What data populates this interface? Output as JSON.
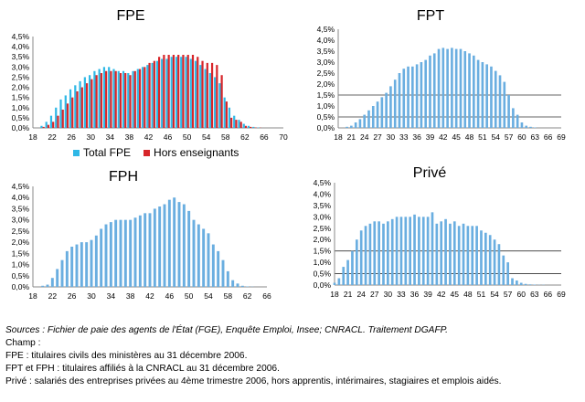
{
  "notes": {
    "sources": "Sources : Fichier de paie des agents de l'État (FGE), Enquête Emploi, Insee; CNRACL. Traitement DGAFP.",
    "champ": "Champ :",
    "fpe": "FPE : titulaires civils des ministères au 31 décembre 2006.",
    "fpt": "FPT et FPH : titulaires affiliés à la CNRACL au 31 décembre 2006.",
    "prive": "Privé : salariés des entreprises privées au 4ème trimestre 2006, hors apprentis, intérimaires, stagiaires et emplois aidés."
  },
  "colors": {
    "total_fpe": "#2fb8e6",
    "hors_enseignants": "#d7262a",
    "bar_blue": "#6aaee0",
    "axis": "#888888",
    "grid": "#333333"
  },
  "chart_data": [
    {
      "id": "fpe",
      "type": "bar",
      "title": "FPE",
      "ylim": [
        0,
        4.5
      ],
      "yticks": [
        "0,0%",
        "0,5%",
        "1,0%",
        "1,5%",
        "2,0%",
        "2,5%",
        "3,0%",
        "3,5%",
        "4,0%",
        "4,5%"
      ],
      "xticks": [
        "18",
        "22",
        "26",
        "30",
        "34",
        "38",
        "42",
        "46",
        "50",
        "54",
        "58",
        "62",
        "66",
        "70"
      ],
      "xrange": [
        18,
        70
      ],
      "legend": [
        "Total FPE",
        "Hors enseignants"
      ],
      "series": [
        {
          "name": "Total FPE",
          "x": [
            20,
            21,
            22,
            23,
            24,
            25,
            26,
            27,
            28,
            29,
            30,
            31,
            32,
            33,
            34,
            35,
            36,
            37,
            38,
            39,
            40,
            41,
            42,
            43,
            44,
            45,
            46,
            47,
            48,
            49,
            50,
            51,
            52,
            53,
            54,
            55,
            56,
            57,
            58,
            59,
            60,
            61,
            62,
            63,
            64,
            65
          ],
          "values": [
            0.1,
            0.3,
            0.6,
            1.0,
            1.4,
            1.6,
            1.9,
            2.1,
            2.3,
            2.5,
            2.6,
            2.8,
            2.9,
            3.0,
            3.0,
            2.9,
            2.8,
            2.8,
            2.7,
            2.8,
            2.9,
            3.0,
            3.1,
            3.2,
            3.3,
            3.4,
            3.4,
            3.5,
            3.5,
            3.5,
            3.5,
            3.4,
            3.3,
            3.1,
            2.9,
            2.7,
            2.5,
            2.2,
            1.5,
            1.0,
            0.6,
            0.4,
            0.2,
            0.1,
            0.05,
            0.02
          ]
        },
        {
          "name": "Hors enseignants",
          "x": [
            20,
            21,
            22,
            23,
            24,
            25,
            26,
            27,
            28,
            29,
            30,
            31,
            32,
            33,
            34,
            35,
            36,
            37,
            38,
            39,
            40,
            41,
            42,
            43,
            44,
            45,
            46,
            47,
            48,
            49,
            50,
            51,
            52,
            53,
            54,
            55,
            56,
            57,
            58,
            59,
            60,
            61,
            62,
            63,
            64,
            65
          ],
          "values": [
            0.05,
            0.15,
            0.3,
            0.6,
            0.9,
            1.2,
            1.5,
            1.8,
            2.0,
            2.2,
            2.4,
            2.6,
            2.7,
            2.8,
            2.8,
            2.8,
            2.7,
            2.7,
            2.6,
            2.8,
            2.9,
            3.0,
            3.2,
            3.3,
            3.5,
            3.6,
            3.6,
            3.6,
            3.6,
            3.6,
            3.6,
            3.6,
            3.5,
            3.3,
            3.2,
            3.2,
            3.1,
            2.6,
            1.3,
            0.5,
            0.4,
            0.3,
            0.1,
            0.05,
            0.02,
            0.01
          ]
        }
      ]
    },
    {
      "id": "fpt",
      "type": "bar",
      "title": "FPT",
      "ylim": [
        0,
        4.5
      ],
      "yticks": [
        "0,0%",
        "0,5%",
        "1,0%",
        "1,5%",
        "2,0%",
        "2,5%",
        "3,0%",
        "3,5%",
        "4,0%",
        "4,5%"
      ],
      "xticks": [
        "18",
        "21",
        "24",
        "27",
        "30",
        "33",
        "36",
        "39",
        "42",
        "45",
        "48",
        "51",
        "54",
        "57",
        "60",
        "63",
        "66",
        "69"
      ],
      "xrange": [
        18,
        69
      ],
      "series": [
        {
          "x": [
            20,
            21,
            22,
            23,
            24,
            25,
            26,
            27,
            28,
            29,
            30,
            31,
            32,
            33,
            34,
            35,
            36,
            37,
            38,
            39,
            40,
            41,
            42,
            43,
            44,
            45,
            46,
            47,
            48,
            49,
            50,
            51,
            52,
            53,
            54,
            55,
            56,
            57,
            58,
            59,
            60,
            61,
            62,
            63
          ],
          "values": [
            0.05,
            0.1,
            0.25,
            0.4,
            0.6,
            0.8,
            1.0,
            1.2,
            1.4,
            1.6,
            1.9,
            2.2,
            2.5,
            2.7,
            2.8,
            2.8,
            2.9,
            3.0,
            3.1,
            3.3,
            3.4,
            3.6,
            3.65,
            3.6,
            3.65,
            3.6,
            3.6,
            3.5,
            3.4,
            3.3,
            3.1,
            3.0,
            2.9,
            2.8,
            2.6,
            2.4,
            2.1,
            1.5,
            0.9,
            0.6,
            0.25,
            0.1,
            0.05,
            0.02
          ]
        }
      ]
    },
    {
      "id": "fph",
      "type": "bar",
      "title": "FPH",
      "ylim": [
        0,
        4.5
      ],
      "yticks": [
        "0,0%",
        "0,5%",
        "1,0%",
        "1,5%",
        "2,0%",
        "2,5%",
        "3,0%",
        "3,5%",
        "4,0%",
        "4,5%"
      ],
      "xticks": [
        "18",
        "22",
        "26",
        "30",
        "34",
        "38",
        "42",
        "46",
        "50",
        "54",
        "58",
        "62",
        "66"
      ],
      "xrange": [
        18,
        66
      ],
      "series": [
        {
          "x": [
            20,
            21,
            22,
            23,
            24,
            25,
            26,
            27,
            28,
            29,
            30,
            31,
            32,
            33,
            34,
            35,
            36,
            37,
            38,
            39,
            40,
            41,
            42,
            43,
            44,
            45,
            46,
            47,
            48,
            49,
            50,
            51,
            52,
            53,
            54,
            55,
            56,
            57,
            58,
            59,
            60,
            61,
            62,
            63
          ],
          "values": [
            0.05,
            0.1,
            0.4,
            0.8,
            1.2,
            1.6,
            1.8,
            1.9,
            2.0,
            2.0,
            2.1,
            2.3,
            2.6,
            2.8,
            2.9,
            3.0,
            3.0,
            3.0,
            3.0,
            3.1,
            3.2,
            3.3,
            3.3,
            3.5,
            3.6,
            3.7,
            3.9,
            4.0,
            3.8,
            3.7,
            3.4,
            3.0,
            2.8,
            2.6,
            2.4,
            1.9,
            1.6,
            1.2,
            0.7,
            0.3,
            0.15,
            0.05,
            0.02,
            0.01
          ]
        }
      ]
    },
    {
      "id": "prive",
      "type": "bar",
      "title": "Privé",
      "ylim": [
        0,
        4.5
      ],
      "yticks": [
        "0,0%",
        "0,5%",
        "1,0%",
        "1,5%",
        "2,0%",
        "2,5%",
        "3,0%",
        "3,5%",
        "4,0%",
        "4,5%"
      ],
      "xticks": [
        "18",
        "21",
        "24",
        "27",
        "30",
        "33",
        "36",
        "39",
        "42",
        "45",
        "48",
        "51",
        "54",
        "57",
        "60",
        "63",
        "66",
        "69"
      ],
      "xrange": [
        18,
        69
      ],
      "series": [
        {
          "x": [
            18,
            19,
            20,
            21,
            22,
            23,
            24,
            25,
            26,
            27,
            28,
            29,
            30,
            31,
            32,
            33,
            34,
            35,
            36,
            37,
            38,
            39,
            40,
            41,
            42,
            43,
            44,
            45,
            46,
            47,
            48,
            49,
            50,
            51,
            52,
            53,
            54,
            55,
            56,
            57,
            58,
            59,
            60,
            61,
            62,
            63,
            64,
            65
          ],
          "values": [
            0.1,
            0.3,
            0.8,
            1.1,
            1.5,
            2.0,
            2.4,
            2.6,
            2.7,
            2.8,
            2.8,
            2.7,
            2.8,
            2.9,
            3.0,
            3.0,
            3.0,
            3.0,
            3.1,
            3.0,
            3.0,
            3.0,
            3.2,
            2.7,
            2.8,
            2.9,
            2.7,
            2.8,
            2.6,
            2.7,
            2.6,
            2.6,
            2.6,
            2.4,
            2.3,
            2.2,
            2.0,
            1.8,
            1.3,
            1.0,
            0.3,
            0.2,
            0.1,
            0.05,
            0.03,
            0.02,
            0.01,
            0.01
          ]
        }
      ]
    }
  ]
}
